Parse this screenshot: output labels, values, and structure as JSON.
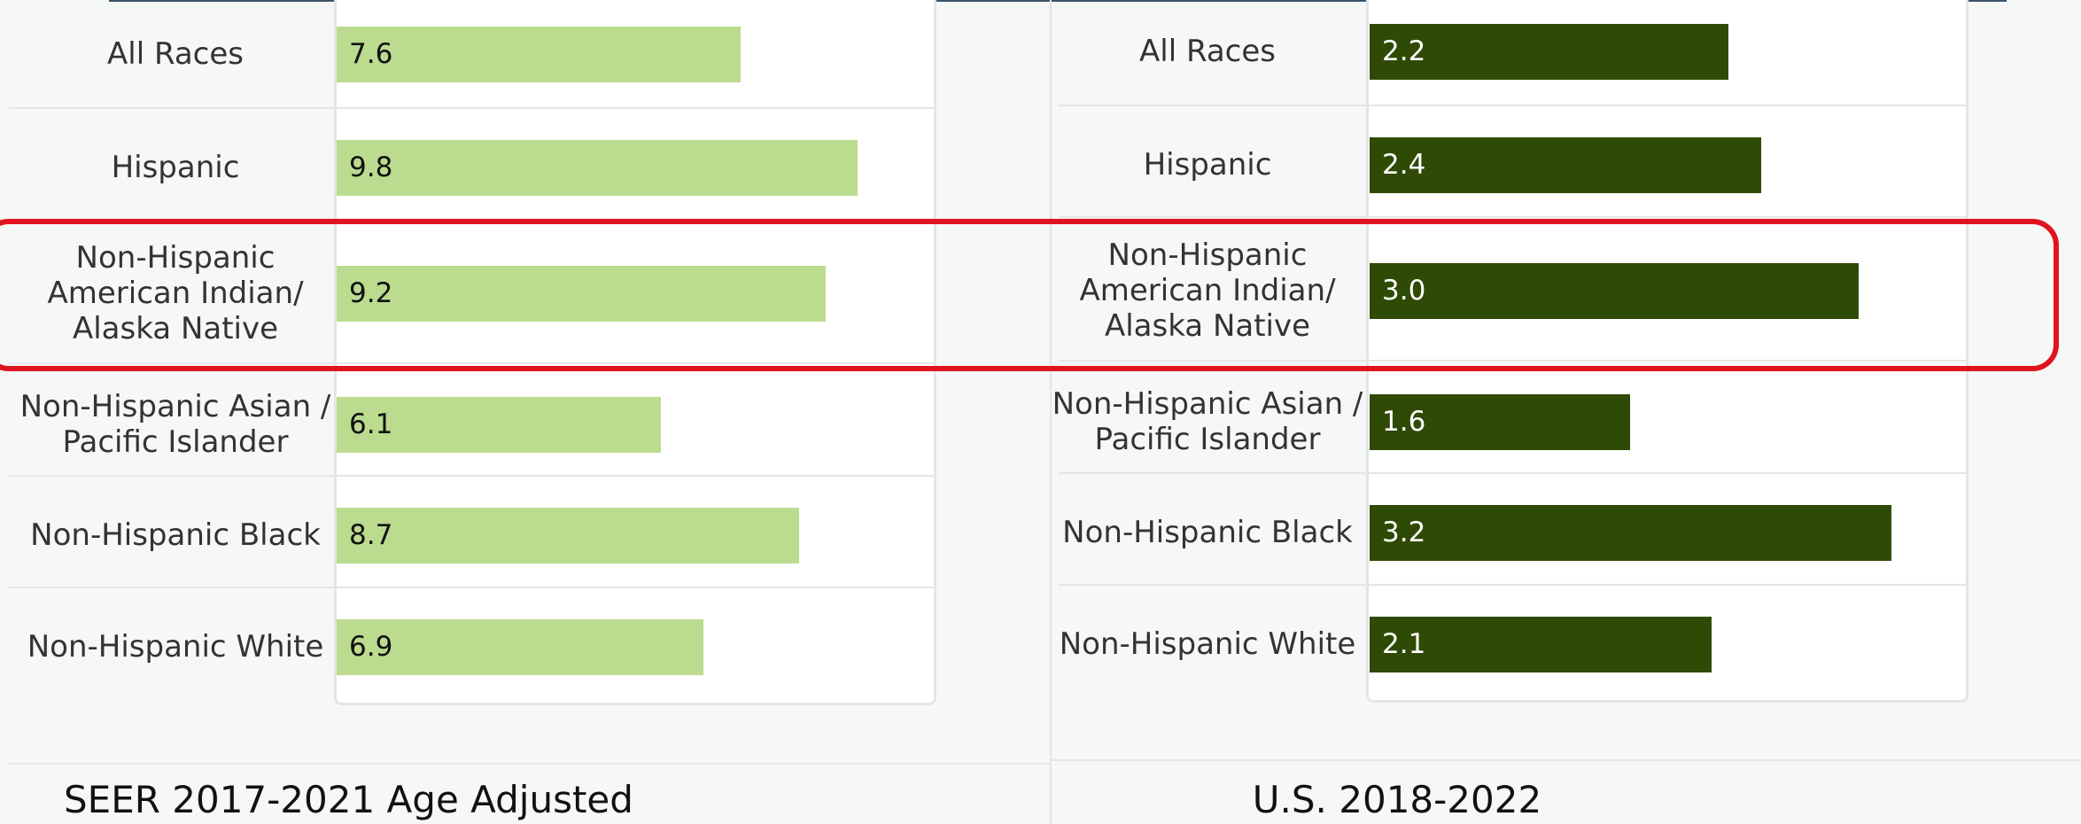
{
  "chart_data": [
    {
      "type": "bar",
      "orientation": "horizontal",
      "color": "#bbdb8f",
      "categories": [
        "All Races",
        "Hispanic",
        "Non-Hispanic\nAmerican Indian/\nAlaska Native",
        "Non-Hispanic Asian /\nPacific Islander",
        "Non-Hispanic Black",
        "Non-Hispanic White"
      ],
      "values": [
        7.6,
        9.8,
        9.2,
        6.1,
        8.7,
        6.9
      ],
      "value_labels": [
        "7.6",
        "9.8",
        "9.2",
        "6.1",
        "8.7",
        "6.9"
      ],
      "caption": "SEER 2017-2021 Age Adjusted"
    },
    {
      "type": "bar",
      "orientation": "horizontal",
      "color": "#2f4a04",
      "categories": [
        "All Races",
        "Hispanic",
        "Non-Hispanic\nAmerican Indian/\nAlaska Native",
        "Non-Hispanic Asian /\nPacific Islander",
        "Non-Hispanic Black",
        "Non-Hispanic White"
      ],
      "values": [
        2.2,
        2.4,
        3.0,
        1.6,
        3.2,
        2.1
      ],
      "value_labels": [
        "2.2",
        "2.4",
        "3.0",
        "1.6",
        "3.2",
        "2.1"
      ],
      "caption": "U.S. 2018-2022"
    }
  ]
}
